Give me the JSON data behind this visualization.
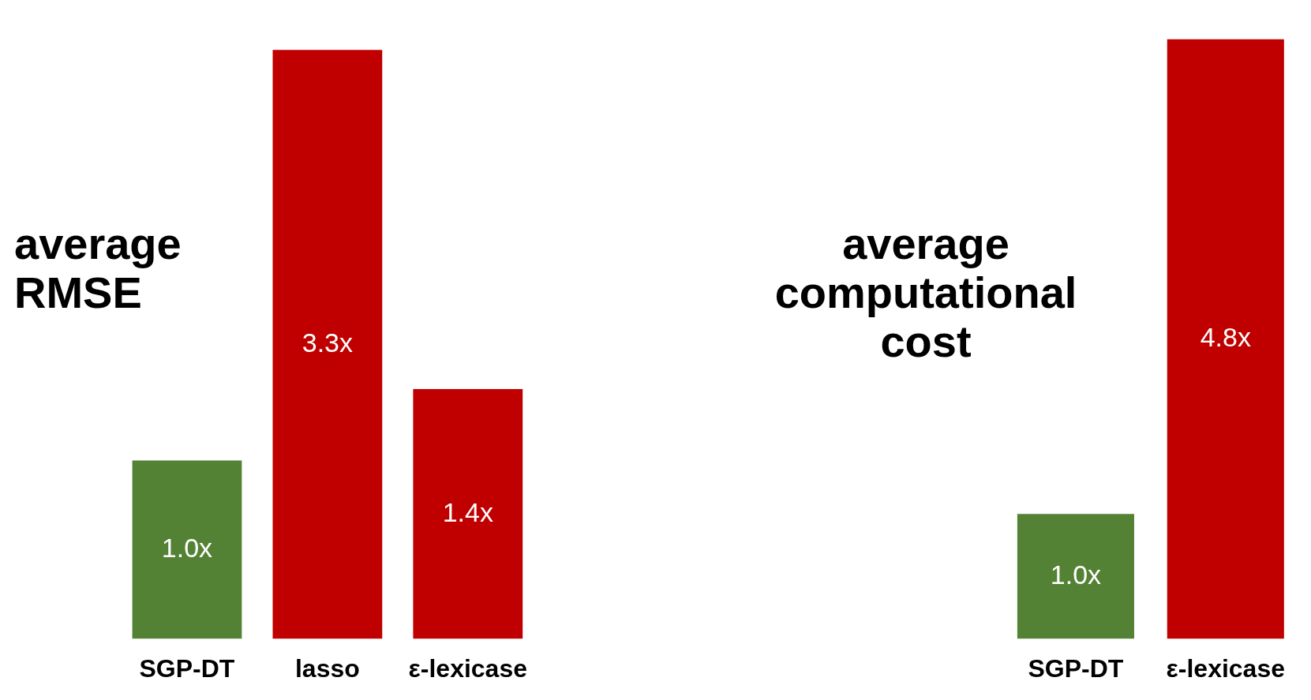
{
  "chart_data": [
    {
      "type": "bar",
      "title": "average RMSE",
      "categories": [
        "SGP-DT",
        "lasso",
        "ε-lexicase"
      ],
      "values": [
        1.0,
        3.3,
        1.4
      ],
      "colors": [
        "#548235",
        "#c00000",
        "#c00000"
      ],
      "value_labels": [
        "1.0x",
        "3.3x",
        "1.4x"
      ]
    },
    {
      "type": "bar",
      "title": "average computational cost",
      "categories": [
        "SGP-DT",
        "ε-lexicase"
      ],
      "values": [
        1.0,
        4.8
      ],
      "colors": [
        "#548235",
        "#c00000"
      ],
      "value_labels": [
        "1.0x",
        "4.8x"
      ]
    }
  ]
}
